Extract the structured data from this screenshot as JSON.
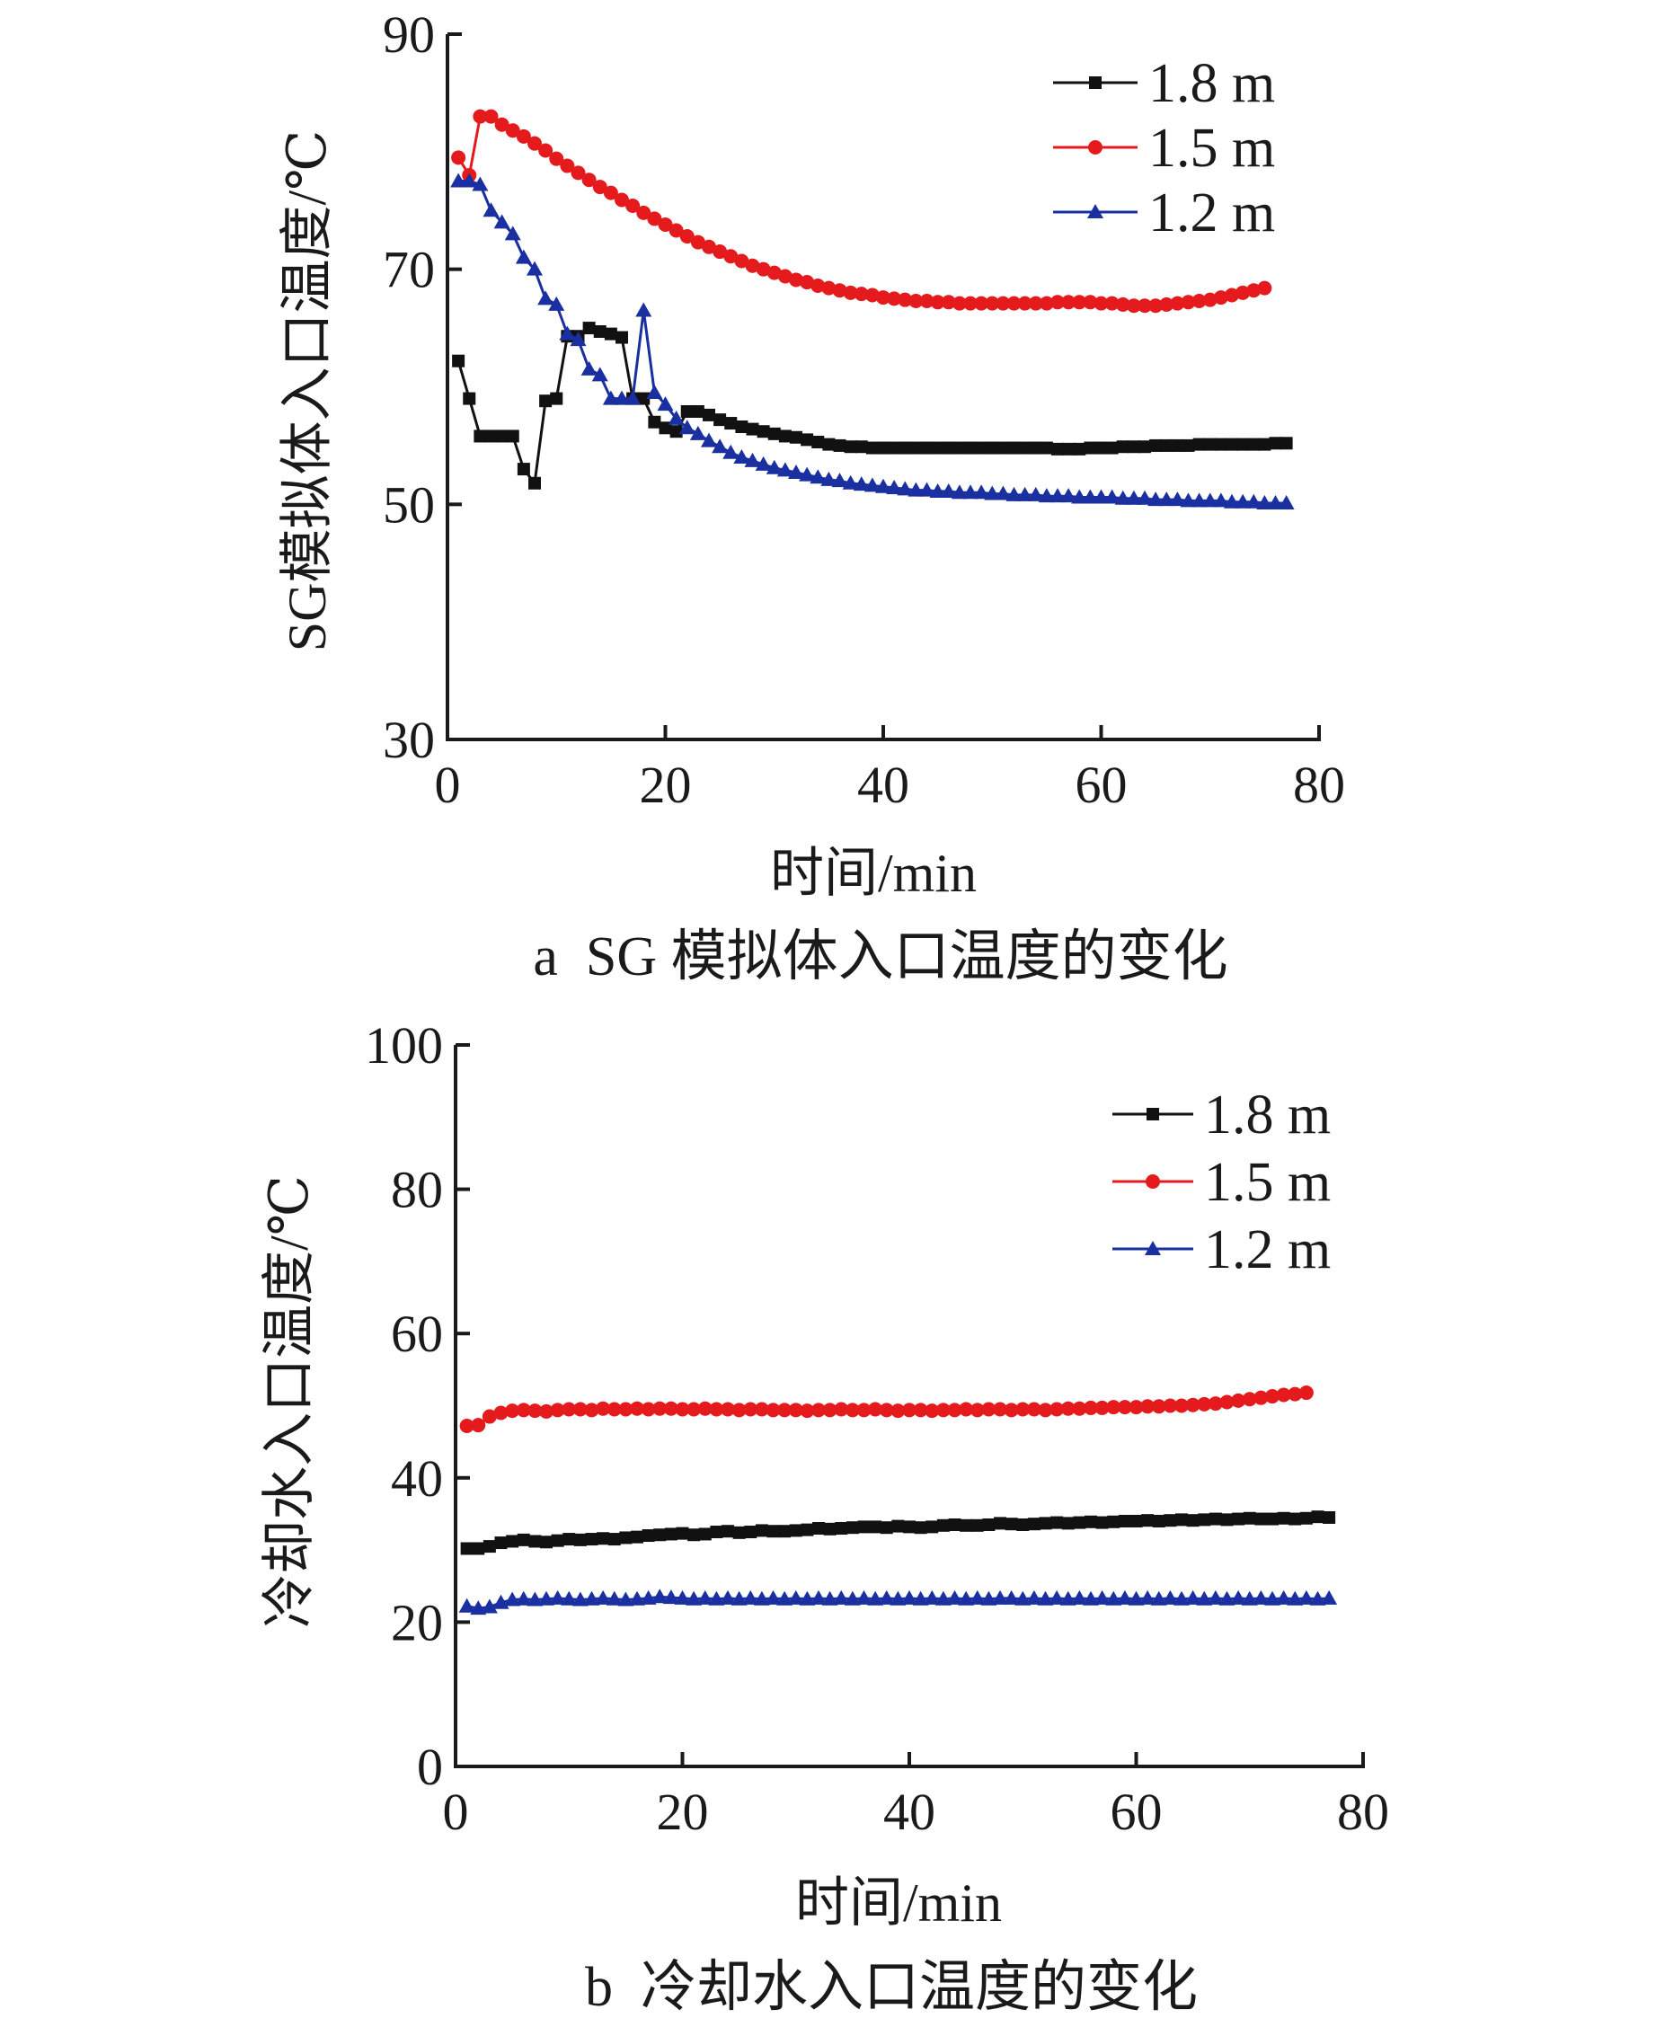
{
  "chart_data": [
    {
      "type": "line",
      "id": "a",
      "caption": "a  SG 模拟体入口温度的变化",
      "xlabel": "时间/min",
      "ylabel": "SG模拟体入口温度/℃",
      "xlim": [
        0,
        80
      ],
      "ylim": [
        30,
        90
      ],
      "xticks": [
        "0",
        "20",
        "40",
        "60",
        "80"
      ],
      "yticks": [
        "30",
        "50",
        "70",
        "90"
      ],
      "legend_position": "top-right",
      "series": [
        {
          "name": "1.8 m",
          "color": "#111111",
          "marker": "square",
          "x": [
            1,
            2,
            3,
            4,
            5,
            6,
            7,
            8,
            9,
            10,
            11,
            12,
            13,
            14,
            15,
            16,
            17,
            18,
            19,
            20,
            21,
            22,
            23,
            24,
            25,
            26,
            27,
            28,
            29,
            30,
            31,
            32,
            33,
            34,
            35,
            36,
            37,
            38,
            39,
            40,
            41,
            42,
            43,
            44,
            45,
            46,
            47,
            48,
            49,
            50,
            51,
            52,
            53,
            54,
            55,
            56,
            57,
            58,
            59,
            60,
            61,
            62,
            63,
            64,
            65,
            66,
            67,
            68,
            69,
            70,
            71,
            72,
            73,
            74,
            75,
            76,
            77
          ],
          "y": [
            62.2,
            59,
            55.8,
            55.8,
            55.8,
            55.8,
            53,
            51.8,
            58.8,
            59,
            64.3,
            64.3,
            65,
            64.7,
            64.5,
            64.2,
            59,
            59,
            57,
            56.5,
            56.2,
            57.9,
            57.9,
            57.6,
            57.2,
            56.9,
            56.6,
            56.4,
            56.2,
            56,
            55.8,
            55.7,
            55.5,
            55.3,
            55.1,
            55,
            54.9,
            54.9,
            54.8,
            54.8,
            54.8,
            54.8,
            54.8,
            54.8,
            54.8,
            54.8,
            54.8,
            54.8,
            54.8,
            54.8,
            54.8,
            54.8,
            54.8,
            54.8,
            54.8,
            54.7,
            54.7,
            54.7,
            54.8,
            54.8,
            54.8,
            54.9,
            54.9,
            54.9,
            55,
            55,
            55,
            55,
            55.1,
            55.1,
            55.1,
            55.1,
            55.1,
            55.1,
            55.1,
            55.2,
            55.2
          ]
        },
        {
          "name": "1.5 m",
          "color": "#e41a1c",
          "marker": "circle",
          "x": [
            1,
            2,
            3,
            4,
            5,
            6,
            7,
            8,
            9,
            10,
            11,
            12,
            13,
            14,
            15,
            16,
            17,
            18,
            19,
            20,
            21,
            22,
            23,
            24,
            25,
            26,
            27,
            28,
            29,
            30,
            31,
            32,
            33,
            34,
            35,
            36,
            37,
            38,
            39,
            40,
            41,
            42,
            43,
            44,
            45,
            46,
            47,
            48,
            49,
            50,
            51,
            52,
            53,
            54,
            55,
            56,
            57,
            58,
            59,
            60,
            61,
            62,
            63,
            64,
            65,
            66,
            67,
            68,
            69,
            70,
            71,
            72,
            73,
            74,
            75
          ],
          "y": [
            79.5,
            78,
            83,
            83,
            82.3,
            81.8,
            81.3,
            80.7,
            80.1,
            79.4,
            78.8,
            78.2,
            77.6,
            77,
            76.5,
            75.9,
            75.4,
            74.8,
            74.3,
            73.8,
            73.3,
            72.8,
            72.3,
            71.9,
            71.5,
            71.1,
            70.7,
            70.3,
            70,
            69.7,
            69.4,
            69.1,
            68.9,
            68.6,
            68.4,
            68.2,
            68,
            67.9,
            67.8,
            67.6,
            67.5,
            67.4,
            67.3,
            67.3,
            67.2,
            67.2,
            67.1,
            67.1,
            67.1,
            67.1,
            67.1,
            67.1,
            67.1,
            67.1,
            67.1,
            67.2,
            67.2,
            67.2,
            67.2,
            67.1,
            67.1,
            67,
            66.9,
            66.9,
            66.9,
            67,
            67.1,
            67.2,
            67.3,
            67.4,
            67.6,
            67.8,
            68,
            68.2,
            68.4
          ]
        },
        {
          "name": "1.2 m",
          "color": "#1a2fa0",
          "marker": "triangle",
          "x": [
            1,
            2,
            3,
            4,
            5,
            6,
            7,
            8,
            9,
            10,
            11,
            12,
            13,
            14,
            15,
            16,
            17,
            18,
            19,
            20,
            21,
            22,
            23,
            24,
            25,
            26,
            27,
            28,
            29,
            30,
            31,
            32,
            33,
            34,
            35,
            36,
            37,
            38,
            39,
            40,
            41,
            42,
            43,
            44,
            45,
            46,
            47,
            48,
            49,
            50,
            51,
            52,
            53,
            54,
            55,
            56,
            57,
            58,
            59,
            60,
            61,
            62,
            63,
            64,
            65,
            66,
            67,
            68,
            69,
            70,
            71,
            72,
            73,
            74,
            75,
            76,
            77
          ],
          "y": [
            77.5,
            77.5,
            77.2,
            75,
            74,
            73,
            71,
            70,
            67.5,
            67,
            64.5,
            64,
            61.5,
            61,
            59,
            59,
            59,
            66.5,
            59.5,
            58.5,
            57.3,
            56.5,
            56,
            55.4,
            54.9,
            54.4,
            54,
            53.7,
            53.4,
            53.1,
            52.9,
            52.7,
            52.5,
            52.3,
            52.1,
            52,
            51.8,
            51.7,
            51.6,
            51.5,
            51.4,
            51.3,
            51.2,
            51.2,
            51.1,
            51.1,
            51,
            51,
            51,
            50.9,
            50.9,
            50.8,
            50.8,
            50.8,
            50.7,
            50.7,
            50.7,
            50.6,
            50.6,
            50.6,
            50.6,
            50.5,
            50.5,
            50.5,
            50.4,
            50.4,
            50.4,
            50.3,
            50.3,
            50.3,
            50.3,
            50.2,
            50.2,
            50.2,
            50.1,
            50.1,
            50.1
          ]
        }
      ]
    },
    {
      "type": "line",
      "id": "b",
      "caption": "b  冷却水入口温度的变化",
      "xlabel": "时间/min",
      "ylabel": "冷却水入口温度/℃",
      "xlim": [
        0,
        80
      ],
      "ylim": [
        0,
        100
      ],
      "xticks": [
        "0",
        "20",
        "40",
        "60",
        "80"
      ],
      "yticks": [
        "0",
        "20",
        "40",
        "60",
        "80",
        "100"
      ],
      "legend_position": "top-right",
      "series": [
        {
          "name": "1.8 m",
          "color": "#111111",
          "marker": "square",
          "x": [
            1,
            2,
            3,
            4,
            5,
            6,
            7,
            8,
            9,
            10,
            11,
            12,
            13,
            14,
            15,
            16,
            17,
            18,
            19,
            20,
            21,
            22,
            23,
            24,
            25,
            26,
            27,
            28,
            29,
            30,
            31,
            32,
            33,
            34,
            35,
            36,
            37,
            38,
            39,
            40,
            41,
            42,
            43,
            44,
            45,
            46,
            47,
            48,
            49,
            50,
            51,
            52,
            53,
            54,
            55,
            56,
            57,
            58,
            59,
            60,
            61,
            62,
            63,
            64,
            65,
            66,
            67,
            68,
            69,
            70,
            71,
            72,
            73,
            74,
            75,
            76,
            77
          ],
          "y": [
            30.2,
            30.2,
            30.5,
            31,
            31.2,
            31.4,
            31.2,
            31.1,
            31.3,
            31.5,
            31.4,
            31.5,
            31.6,
            31.5,
            31.7,
            31.8,
            32,
            32.1,
            32.2,
            32.3,
            32.1,
            32.2,
            32.5,
            32.6,
            32.4,
            32.5,
            32.7,
            32.6,
            32.6,
            32.7,
            32.8,
            33,
            32.9,
            33,
            33.1,
            33.2,
            33.2,
            33.1,
            33.3,
            33.2,
            33.1,
            33.2,
            33.4,
            33.5,
            33.4,
            33.4,
            33.5,
            33.7,
            33.6,
            33.5,
            33.6,
            33.7,
            33.8,
            33.7,
            33.8,
            33.9,
            33.8,
            33.9,
            34,
            34,
            34.1,
            34,
            34.1,
            34.2,
            34.1,
            34.2,
            34.3,
            34.2,
            34.3,
            34.4,
            34.3,
            34.3,
            34.4,
            34.3,
            34.4,
            34.6,
            34.5
          ]
        },
        {
          "name": "1.5 m",
          "color": "#e41a1c",
          "marker": "circle",
          "x": [
            1,
            2,
            3,
            4,
            5,
            6,
            7,
            8,
            9,
            10,
            11,
            12,
            13,
            14,
            15,
            16,
            17,
            18,
            19,
            20,
            21,
            22,
            23,
            24,
            25,
            26,
            27,
            28,
            29,
            30,
            31,
            32,
            33,
            34,
            35,
            36,
            37,
            38,
            39,
            40,
            41,
            42,
            43,
            44,
            45,
            46,
            47,
            48,
            49,
            50,
            51,
            52,
            53,
            54,
            55,
            56,
            57,
            58,
            59,
            60,
            61,
            62,
            63,
            64,
            65,
            66,
            67,
            68,
            69,
            70,
            71,
            72,
            73,
            74,
            75
          ],
          "y": [
            47.2,
            47.3,
            48.5,
            49,
            49.3,
            49.4,
            49.3,
            49.2,
            49.4,
            49.5,
            49.5,
            49.4,
            49.6,
            49.5,
            49.5,
            49.6,
            49.5,
            49.6,
            49.6,
            49.5,
            49.5,
            49.6,
            49.5,
            49.5,
            49.4,
            49.5,
            49.5,
            49.4,
            49.4,
            49.4,
            49.3,
            49.4,
            49.4,
            49.5,
            49.4,
            49.4,
            49.5,
            49.4,
            49.3,
            49.4,
            49.4,
            49.3,
            49.4,
            49.4,
            49.5,
            49.4,
            49.5,
            49.5,
            49.4,
            49.5,
            49.5,
            49.4,
            49.5,
            49.6,
            49.6,
            49.7,
            49.7,
            49.8,
            49.8,
            49.8,
            49.9,
            49.9,
            50,
            50,
            50.1,
            50.2,
            50.3,
            50.5,
            50.7,
            50.9,
            51.1,
            51.3,
            51.5,
            51.6,
            51.8
          ]
        },
        {
          "name": "1.2 m",
          "color": "#1a2fa0",
          "marker": "triangle",
          "x": [
            1,
            2,
            3,
            4,
            5,
            6,
            7,
            8,
            9,
            10,
            11,
            12,
            13,
            14,
            15,
            16,
            17,
            18,
            19,
            20,
            21,
            22,
            23,
            24,
            25,
            26,
            27,
            28,
            29,
            30,
            31,
            32,
            33,
            34,
            35,
            36,
            37,
            38,
            39,
            40,
            41,
            42,
            43,
            44,
            45,
            46,
            47,
            48,
            49,
            50,
            51,
            52,
            53,
            54,
            55,
            56,
            57,
            58,
            59,
            60,
            61,
            62,
            63,
            64,
            65,
            66,
            67,
            68,
            69,
            70,
            71,
            72,
            73,
            74,
            75,
            76,
            77
          ],
          "y": [
            22.2,
            21.9,
            22.1,
            22.7,
            23.1,
            23.2,
            23.1,
            23.2,
            23.3,
            23.2,
            23.1,
            23.2,
            23.3,
            23.2,
            23.1,
            23.2,
            23.3,
            23.5,
            23.4,
            23.3,
            23.2,
            23.3,
            23.2,
            23.3,
            23.2,
            23.3,
            23.2,
            23.3,
            23.2,
            23.3,
            23.2,
            23.3,
            23.2,
            23.3,
            23.2,
            23.3,
            23.2,
            23.3,
            23.2,
            23.3,
            23.2,
            23.3,
            23.2,
            23.3,
            23.2,
            23.3,
            23.2,
            23.3,
            23.3,
            23.2,
            23.3,
            23.2,
            23.3,
            23.2,
            23.3,
            23.2,
            23.3,
            23.2,
            23.3,
            23.2,
            23.3,
            23.2,
            23.3,
            23.2,
            23.3,
            23.2,
            23.3,
            23.2,
            23.3,
            23.2,
            23.3,
            23.2,
            23.3,
            23.2,
            23.3,
            23.2,
            23.3
          ]
        }
      ]
    }
  ]
}
